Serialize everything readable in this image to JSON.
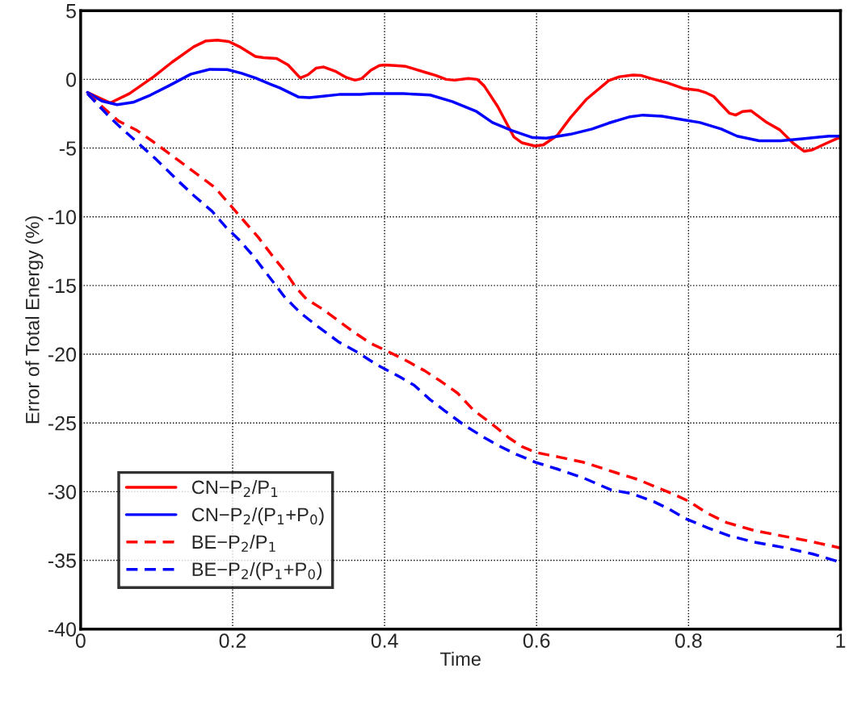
{
  "chart_data": {
    "type": "line",
    "xlabel": "Time",
    "ylabel": "Error of Total Energy (%)",
    "xlim": [
      0,
      1
    ],
    "ylim": [
      -40,
      5
    ],
    "xticks": [
      0,
      0.2,
      0.4,
      0.6,
      0.8,
      1
    ],
    "yticks": [
      -40,
      -35,
      -30,
      -25,
      -20,
      -15,
      -10,
      -5,
      0,
      5
    ],
    "grid": true,
    "legend": "bottom left",
    "marker": "none",
    "series": [
      {
        "name": "CN−P$_{2}$/P$_{1}$",
        "color": "#ff0000",
        "line_style": "solid",
        "x": [
          0.009,
          0.039,
          0.064,
          0.096,
          0.12,
          0.149,
          0.165,
          0.18,
          0.195,
          0.209,
          0.23,
          0.241,
          0.258,
          0.273,
          0.289,
          0.299,
          0.31,
          0.32,
          0.336,
          0.35,
          0.361,
          0.37,
          0.382,
          0.393,
          0.4,
          0.418,
          0.428,
          0.453,
          0.467,
          0.481,
          0.492,
          0.51,
          0.522,
          0.531,
          0.549,
          0.57,
          0.581,
          0.598,
          0.609,
          0.627,
          0.645,
          0.666,
          0.695,
          0.709,
          0.727,
          0.737,
          0.751,
          0.772,
          0.794,
          0.812,
          0.822,
          0.833,
          0.854,
          0.862,
          0.871,
          0.882,
          0.903,
          0.92,
          0.938,
          0.952,
          0.963,
          0.981,
          0.995,
          1.0
        ],
        "values": [
          -0.95,
          -1.71,
          -1.04,
          0.19,
          1.24,
          2.38,
          2.8,
          2.85,
          2.75,
          2.38,
          1.66,
          1.58,
          1.52,
          1.05,
          0.1,
          0.33,
          0.82,
          0.9,
          0.57,
          0.13,
          -0.06,
          0.06,
          0.67,
          1.01,
          1.05,
          0.99,
          0.94,
          0.52,
          0.29,
          0.0,
          -0.06,
          0.06,
          0.0,
          -0.47,
          -1.99,
          -4.18,
          -4.62,
          -4.85,
          -4.76,
          -4.09,
          -2.76,
          -1.43,
          -0.09,
          0.19,
          0.32,
          0.29,
          0.06,
          -0.25,
          -0.67,
          -0.78,
          -0.95,
          -1.24,
          -2.47,
          -2.6,
          -2.34,
          -2.28,
          -3.14,
          -3.67,
          -4.66,
          -5.23,
          -5.13,
          -4.66,
          -4.32,
          -4.24
        ]
      },
      {
        "name": "CN−P$_{2}$/(P$_{1}$+P$_{0}$)",
        "color": "#0000ff",
        "line_style": "solid",
        "x": [
          0.009,
          0.028,
          0.048,
          0.069,
          0.092,
          0.117,
          0.145,
          0.17,
          0.193,
          0.212,
          0.23,
          0.251,
          0.262,
          0.287,
          0.301,
          0.319,
          0.34,
          0.368,
          0.382,
          0.425,
          0.46,
          0.489,
          0.521,
          0.542,
          0.567,
          0.595,
          0.613,
          0.645,
          0.673,
          0.695,
          0.723,
          0.74,
          0.765,
          0.79,
          0.815,
          0.843,
          0.864,
          0.893,
          0.921,
          0.95,
          0.985,
          1.0
        ],
        "values": [
          -0.95,
          -1.58,
          -1.84,
          -1.67,
          -1.14,
          -0.44,
          0.38,
          0.73,
          0.71,
          0.44,
          0.1,
          -0.38,
          -0.62,
          -1.29,
          -1.33,
          -1.23,
          -1.1,
          -1.1,
          -1.04,
          -1.04,
          -1.14,
          -1.62,
          -2.34,
          -3.14,
          -3.71,
          -4.24,
          -4.28,
          -3.99,
          -3.61,
          -3.18,
          -2.72,
          -2.6,
          -2.68,
          -2.91,
          -3.14,
          -3.61,
          -4.13,
          -4.47,
          -4.47,
          -4.32,
          -4.13,
          -4.13
        ]
      },
      {
        "name": "BE−P$_{2}$/P$_{1}$",
        "color": "#ff0000",
        "line_style": "dashed",
        "x": [
          0.009,
          0.05,
          0.074,
          0.096,
          0.117,
          0.138,
          0.159,
          0.177,
          0.198,
          0.216,
          0.234,
          0.255,
          0.269,
          0.283,
          0.297,
          0.319,
          0.34,
          0.361,
          0.382,
          0.404,
          0.428,
          0.453,
          0.474,
          0.496,
          0.517,
          0.542,
          0.563,
          0.581,
          0.599,
          0.63,
          0.662,
          0.705,
          0.733,
          0.762,
          0.783,
          0.801,
          0.825,
          0.85,
          0.886,
          0.921,
          0.957,
          1.0
        ],
        "values": [
          -1.04,
          -3.04,
          -3.71,
          -4.56,
          -5.42,
          -6.28,
          -7.13,
          -7.89,
          -9.22,
          -10.37,
          -11.51,
          -13.03,
          -13.98,
          -15.12,
          -15.98,
          -16.74,
          -17.6,
          -18.45,
          -19.22,
          -19.79,
          -20.45,
          -21.21,
          -21.97,
          -22.83,
          -24.07,
          -25.11,
          -26.06,
          -26.73,
          -27.15,
          -27.49,
          -27.87,
          -28.63,
          -29.11,
          -29.77,
          -30.25,
          -30.72,
          -31.58,
          -32.25,
          -32.82,
          -33.2,
          -33.58,
          -34.1
        ]
      },
      {
        "name": "BE−P$_{2}$/(P$_{1}$+P$_{0}$)",
        "color": "#0000ff",
        "line_style": "dashed",
        "x": [
          0.009,
          0.035,
          0.053,
          0.074,
          0.099,
          0.127,
          0.149,
          0.173,
          0.191,
          0.209,
          0.227,
          0.248,
          0.269,
          0.29,
          0.312,
          0.34,
          0.365,
          0.389,
          0.418,
          0.439,
          0.46,
          0.478,
          0.506,
          0.531,
          0.549,
          0.574,
          0.599,
          0.627,
          0.662,
          0.698,
          0.726,
          0.754,
          0.775,
          0.796,
          0.825,
          0.853,
          0.886,
          0.924,
          0.963,
          0.995
        ],
        "values": [
          -1.04,
          -2.57,
          -3.52,
          -4.56,
          -5.8,
          -7.32,
          -8.46,
          -9.6,
          -10.75,
          -11.7,
          -12.84,
          -14.36,
          -15.88,
          -17.03,
          -17.98,
          -19.12,
          -19.88,
          -20.74,
          -21.59,
          -22.26,
          -23.31,
          -24.07,
          -25.21,
          -26.06,
          -26.63,
          -27.3,
          -27.87,
          -28.35,
          -29.01,
          -29.87,
          -30.15,
          -30.72,
          -31.29,
          -31.96,
          -32.63,
          -33.2,
          -33.67,
          -34.05,
          -34.53,
          -35.06
        ]
      }
    ]
  }
}
